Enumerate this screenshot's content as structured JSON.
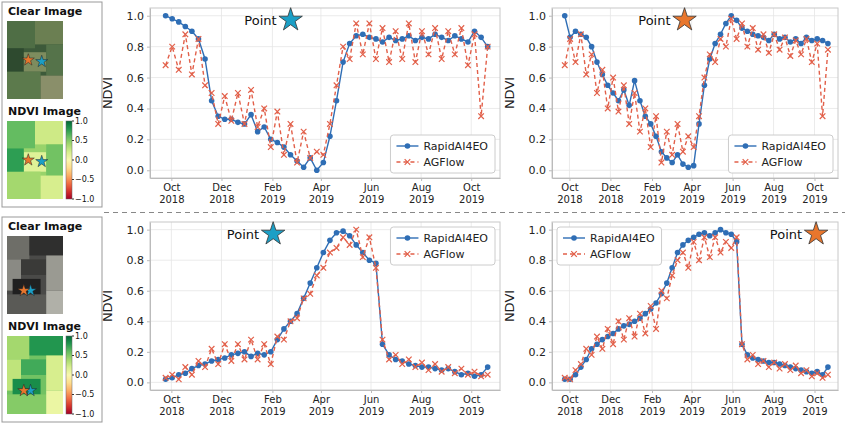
{
  "image_panels": [
    {
      "clear_label": "Clear Image",
      "ndvi_label": "NDVI Image",
      "colorbar": {
        "range": [
          -1,
          1
        ],
        "ticks": [
          {
            "value": 1,
            "label": "1.0"
          },
          {
            "value": 0.5,
            "label": "0.5"
          },
          {
            "value": 0,
            "label": "0.0"
          },
          {
            "value": -0.5,
            "label": "−0.5"
          },
          {
            "value": -1,
            "label": "−1.0"
          }
        ]
      }
    },
    {
      "clear_label": "Clear Image",
      "ndvi_label": "NDVI Image",
      "colorbar": {
        "range": [
          -1,
          1
        ],
        "ticks": [
          {
            "value": 1,
            "label": "1.0"
          },
          {
            "value": 0.5,
            "label": "0.5"
          },
          {
            "value": 0,
            "label": "0.0"
          },
          {
            "value": -0.5,
            "label": "−0.5"
          },
          {
            "value": -1,
            "label": "−1.0"
          }
        ]
      }
    }
  ],
  "chart_data": [
    {
      "type": "line",
      "title": "Point",
      "color": "#1b9fc6",
      "y_label": "NDVI",
      "grid": true,
      "legend": "lower right",
      "xlim": [
        "2018-09-05",
        "2019-11-05"
      ],
      "xticks": [
        {
          "value": "2018-10-01",
          "label": "Oct\n2018"
        },
        {
          "value": "2018-12-01",
          "label": "Dec\n2018"
        },
        {
          "value": "2019-02-01",
          "label": "Feb\n2019"
        },
        {
          "value": "2019-04-01",
          "label": "Apr\n2019"
        },
        {
          "value": "2019-06-01",
          "label": "Jun\n2019"
        },
        {
          "value": "2019-08-01",
          "label": "Aug\n2019"
        },
        {
          "value": "2019-10-01",
          "label": "Oct\n2019"
        }
      ],
      "ylim": [
        -0.05,
        1.05
      ],
      "yticks": [
        {
          "value": 0,
          "label": "0.0"
        },
        {
          "value": 0.2,
          "label": "0.2"
        },
        {
          "value": 0.4,
          "label": "0.4"
        },
        {
          "value": 0.6,
          "label": "0.6"
        },
        {
          "value": 0.8,
          "label": "0.8"
        },
        {
          "value": 1,
          "label": "1.0"
        }
      ],
      "x": [
        "2018-09-24",
        "2018-10-02",
        "2018-10-10",
        "2018-10-18",
        "2018-10-26",
        "2018-11-03",
        "2018-11-11",
        "2018-11-19",
        "2018-11-27",
        "2018-12-05",
        "2018-12-13",
        "2018-12-21",
        "2018-12-29",
        "2019-01-06",
        "2019-01-14",
        "2019-01-22",
        "2019-01-30",
        "2019-02-07",
        "2019-02-15",
        "2019-02-23",
        "2019-03-03",
        "2019-03-11",
        "2019-03-19",
        "2019-03-27",
        "2019-04-04",
        "2019-04-12",
        "2019-04-20",
        "2019-04-28",
        "2019-05-06",
        "2019-05-14",
        "2019-05-22",
        "2019-05-30",
        "2019-06-07",
        "2019-06-15",
        "2019-06-23",
        "2019-07-01",
        "2019-07-09",
        "2019-07-17",
        "2019-07-25",
        "2019-08-02",
        "2019-08-10",
        "2019-08-18",
        "2019-08-26",
        "2019-09-03",
        "2019-09-11",
        "2019-09-19",
        "2019-09-27",
        "2019-10-05",
        "2019-10-13",
        "2019-10-21"
      ],
      "series": [
        {
          "name": "RapidAI4EO",
          "color": "#2f6eb5",
          "marker": "circle",
          "line_style": "solid",
          "values": [
            1.0,
            0.98,
            0.96,
            0.93,
            0.9,
            0.85,
            0.72,
            0.45,
            0.35,
            0.33,
            0.33,
            0.31,
            0.3,
            0.36,
            0.25,
            0.28,
            0.2,
            0.18,
            0.15,
            0.1,
            0.06,
            0.02,
            0.08,
            0.0,
            0.05,
            0.22,
            0.45,
            0.7,
            0.82,
            0.87,
            0.88,
            0.86,
            0.85,
            0.83,
            0.86,
            0.84,
            0.85,
            0.87,
            0.84,
            0.86,
            0.85,
            0.88,
            0.86,
            0.84,
            0.87,
            0.85,
            0.83,
            0.9,
            0.86,
            0.8
          ]
        },
        {
          "name": "AGFlow",
          "color": "#e2604a",
          "marker": "x",
          "line_style": "dashed",
          "values": [
            0.68,
            0.8,
            0.65,
            0.88,
            0.62,
            0.85,
            0.55,
            0.5,
            0.3,
            0.48,
            0.32,
            0.5,
            0.3,
            0.52,
            0.28,
            0.4,
            0.15,
            0.38,
            0.1,
            0.3,
            0.05,
            0.25,
            0.08,
            0.12,
            0.1,
            0.3,
            0.55,
            0.8,
            0.72,
            0.95,
            0.75,
            0.95,
            0.72,
            0.92,
            0.7,
            0.9,
            0.72,
            0.95,
            0.7,
            0.9,
            0.75,
            0.92,
            0.72,
            0.9,
            0.75,
            0.92,
            0.68,
            0.88,
            0.35,
            0.8
          ]
        }
      ]
    },
    {
      "type": "line",
      "title": "Point",
      "color": "#e8762d",
      "y_label": "NDVI",
      "grid": true,
      "legend": "lower right",
      "xlim": [
        "2018-09-05",
        "2019-11-05"
      ],
      "xticks": [
        {
          "value": "2018-10-01",
          "label": "Oct\n2018"
        },
        {
          "value": "2018-12-01",
          "label": "Dec\n2018"
        },
        {
          "value": "2019-02-01",
          "label": "Feb\n2019"
        },
        {
          "value": "2019-04-01",
          "label": "Apr\n2019"
        },
        {
          "value": "2019-06-01",
          "label": "Jun\n2019"
        },
        {
          "value": "2019-08-01",
          "label": "Aug\n2019"
        },
        {
          "value": "2019-10-01",
          "label": "Oct\n2019"
        }
      ],
      "ylim": [
        -0.05,
        1.05
      ],
      "yticks": [
        {
          "value": 0,
          "label": "0.0"
        },
        {
          "value": 0.2,
          "label": "0.2"
        },
        {
          "value": 0.4,
          "label": "0.4"
        },
        {
          "value": 0.6,
          "label": "0.6"
        },
        {
          "value": 0.8,
          "label": "0.8"
        },
        {
          "value": 1,
          "label": "1.0"
        }
      ],
      "x": [
        "2018-09-24",
        "2018-10-02",
        "2018-10-10",
        "2018-10-18",
        "2018-10-26",
        "2018-11-03",
        "2018-11-11",
        "2018-11-19",
        "2018-11-27",
        "2018-12-05",
        "2018-12-13",
        "2018-12-21",
        "2018-12-29",
        "2019-01-06",
        "2019-01-14",
        "2019-01-22",
        "2019-01-30",
        "2019-02-07",
        "2019-02-15",
        "2019-02-23",
        "2019-03-03",
        "2019-03-11",
        "2019-03-19",
        "2019-03-27",
        "2019-04-04",
        "2019-04-12",
        "2019-04-20",
        "2019-04-28",
        "2019-05-06",
        "2019-05-14",
        "2019-05-22",
        "2019-05-30",
        "2019-06-07",
        "2019-06-15",
        "2019-06-23",
        "2019-07-01",
        "2019-07-09",
        "2019-07-17",
        "2019-07-25",
        "2019-08-02",
        "2019-08-10",
        "2019-08-18",
        "2019-08-26",
        "2019-09-03",
        "2019-09-11",
        "2019-09-19",
        "2019-09-27",
        "2019-10-05",
        "2019-10-13",
        "2019-10-21"
      ],
      "series": [
        {
          "name": "RapidAI4EO",
          "color": "#2f6eb5",
          "marker": "circle",
          "line_style": "solid",
          "values": [
            1.0,
            0.86,
            0.9,
            0.88,
            0.86,
            0.8,
            0.7,
            0.62,
            0.55,
            0.5,
            0.45,
            0.52,
            0.42,
            0.58,
            0.45,
            0.35,
            0.3,
            0.22,
            0.12,
            0.08,
            0.05,
            0.1,
            0.04,
            0.02,
            0.03,
            0.3,
            0.55,
            0.72,
            0.82,
            0.88,
            0.95,
            1.0,
            0.97,
            0.92,
            0.9,
            0.88,
            0.87,
            0.86,
            0.84,
            0.88,
            0.85,
            0.86,
            0.83,
            0.85,
            0.82,
            0.86,
            0.84,
            0.85,
            0.84,
            0.82
          ]
        },
        {
          "name": "AGFlow",
          "color": "#e2604a",
          "marker": "x",
          "line_style": "dashed",
          "values": [
            0.68,
            0.85,
            0.7,
            0.88,
            0.62,
            0.75,
            0.5,
            0.65,
            0.4,
            0.6,
            0.38,
            0.55,
            0.3,
            0.5,
            0.25,
            0.4,
            0.15,
            0.35,
            0.05,
            0.25,
            0.1,
            0.3,
            0.12,
            0.22,
            0.15,
            0.35,
            0.6,
            0.75,
            0.7,
            0.85,
            0.8,
            0.98,
            0.85,
            0.95,
            0.8,
            0.92,
            0.78,
            0.88,
            0.76,
            0.88,
            0.78,
            0.86,
            0.74,
            0.84,
            0.75,
            0.85,
            0.7,
            0.82,
            0.35,
            0.78
          ]
        }
      ]
    },
    {
      "type": "line",
      "title": "Point",
      "color": "#1b9fc6",
      "y_label": "NDVI",
      "grid": true,
      "legend": "upper right",
      "xlim": [
        "2018-09-05",
        "2019-11-05"
      ],
      "xticks": [
        {
          "value": "2018-10-01",
          "label": "Oct\n2018"
        },
        {
          "value": "2018-12-01",
          "label": "Dec\n2018"
        },
        {
          "value": "2019-02-01",
          "label": "Feb\n2019"
        },
        {
          "value": "2019-04-01",
          "label": "Apr\n2019"
        },
        {
          "value": "2019-06-01",
          "label": "Jun\n2019"
        },
        {
          "value": "2019-08-01",
          "label": "Aug\n2019"
        },
        {
          "value": "2019-10-01",
          "label": "Oct\n2019"
        }
      ],
      "ylim": [
        -0.05,
        1.05
      ],
      "yticks": [
        {
          "value": 0,
          "label": "0.0"
        },
        {
          "value": 0.2,
          "label": "0.2"
        },
        {
          "value": 0.4,
          "label": "0.4"
        },
        {
          "value": 0.6,
          "label": "0.6"
        },
        {
          "value": 0.8,
          "label": "0.8"
        },
        {
          "value": 1,
          "label": "1.0"
        }
      ],
      "x": [
        "2018-09-24",
        "2018-10-02",
        "2018-10-10",
        "2018-10-18",
        "2018-10-26",
        "2018-11-03",
        "2018-11-11",
        "2018-11-19",
        "2018-11-27",
        "2018-12-05",
        "2018-12-13",
        "2018-12-21",
        "2018-12-29",
        "2019-01-06",
        "2019-01-14",
        "2019-01-22",
        "2019-01-30",
        "2019-02-07",
        "2019-02-15",
        "2019-02-23",
        "2019-03-03",
        "2019-03-11",
        "2019-03-19",
        "2019-03-27",
        "2019-04-04",
        "2019-04-12",
        "2019-04-20",
        "2019-04-28",
        "2019-05-06",
        "2019-05-14",
        "2019-05-22",
        "2019-05-30",
        "2019-06-07",
        "2019-06-15",
        "2019-06-23",
        "2019-07-01",
        "2019-07-09",
        "2019-07-17",
        "2019-07-25",
        "2019-08-02",
        "2019-08-10",
        "2019-08-18",
        "2019-08-26",
        "2019-09-03",
        "2019-09-11",
        "2019-09-19",
        "2019-09-27",
        "2019-10-05",
        "2019-10-13",
        "2019-10-21"
      ],
      "series": [
        {
          "name": "RapidAI4EO",
          "color": "#2f6eb5",
          "marker": "circle",
          "line_style": "solid",
          "values": [
            0.02,
            0.03,
            0.05,
            0.06,
            0.09,
            0.11,
            0.12,
            0.14,
            0.15,
            0.16,
            0.18,
            0.19,
            0.2,
            0.17,
            0.19,
            0.18,
            0.2,
            0.28,
            0.35,
            0.4,
            0.45,
            0.55,
            0.65,
            0.75,
            0.85,
            0.93,
            0.98,
            0.99,
            0.96,
            0.9,
            0.85,
            0.8,
            0.78,
            0.25,
            0.18,
            0.15,
            0.14,
            0.12,
            0.11,
            0.1,
            0.1,
            0.09,
            0.08,
            0.09,
            0.07,
            0.05,
            0.06,
            0.04,
            0.05,
            0.1
          ]
        },
        {
          "name": "AGFlow",
          "color": "#e2604a",
          "marker": "x",
          "line_style": "dashed",
          "values": [
            0.03,
            0.05,
            0.02,
            0.1,
            0.05,
            0.14,
            0.1,
            0.22,
            0.12,
            0.25,
            0.14,
            0.25,
            0.15,
            0.28,
            0.15,
            0.25,
            0.12,
            0.3,
            0.28,
            0.4,
            0.42,
            0.55,
            0.58,
            0.7,
            0.75,
            0.85,
            0.88,
            0.95,
            0.9,
            1.0,
            0.82,
            0.95,
            0.75,
            0.28,
            0.15,
            0.18,
            0.12,
            0.15,
            0.1,
            0.13,
            0.08,
            0.12,
            0.07,
            0.1,
            0.06,
            0.09,
            0.05,
            0.07,
            0.04,
            0.05
          ]
        }
      ]
    },
    {
      "type": "line",
      "title": "Point",
      "color": "#e8762d",
      "y_label": "NDVI",
      "grid": true,
      "legend": "upper left",
      "xlim": [
        "2018-09-05",
        "2019-11-05"
      ],
      "xticks": [
        {
          "value": "2018-10-01",
          "label": "Oct\n2018"
        },
        {
          "value": "2018-12-01",
          "label": "Dec\n2018"
        },
        {
          "value": "2019-02-01",
          "label": "Feb\n2019"
        },
        {
          "value": "2019-04-01",
          "label": "Apr\n2019"
        },
        {
          "value": "2019-06-01",
          "label": "Jun\n2019"
        },
        {
          "value": "2019-08-01",
          "label": "Aug\n2019"
        },
        {
          "value": "2019-10-01",
          "label": "Oct\n2019"
        }
      ],
      "ylim": [
        -0.05,
        1.05
      ],
      "yticks": [
        {
          "value": 0,
          "label": "0.0"
        },
        {
          "value": 0.2,
          "label": "0.2"
        },
        {
          "value": 0.4,
          "label": "0.4"
        },
        {
          "value": 0.6,
          "label": "0.6"
        },
        {
          "value": 0.8,
          "label": "0.8"
        },
        {
          "value": 1,
          "label": "1.0"
        }
      ],
      "x": [
        "2018-09-24",
        "2018-10-02",
        "2018-10-10",
        "2018-10-18",
        "2018-10-26",
        "2018-11-03",
        "2018-11-11",
        "2018-11-19",
        "2018-11-27",
        "2018-12-05",
        "2018-12-13",
        "2018-12-21",
        "2018-12-29",
        "2019-01-06",
        "2019-01-14",
        "2019-01-22",
        "2019-01-30",
        "2019-02-07",
        "2019-02-15",
        "2019-02-23",
        "2019-03-03",
        "2019-03-11",
        "2019-03-19",
        "2019-03-27",
        "2019-04-04",
        "2019-04-12",
        "2019-04-20",
        "2019-04-28",
        "2019-05-06",
        "2019-05-14",
        "2019-05-22",
        "2019-05-30",
        "2019-06-07",
        "2019-06-15",
        "2019-06-23",
        "2019-07-01",
        "2019-07-09",
        "2019-07-17",
        "2019-07-25",
        "2019-08-02",
        "2019-08-10",
        "2019-08-18",
        "2019-08-26",
        "2019-09-03",
        "2019-09-11",
        "2019-09-19",
        "2019-09-27",
        "2019-10-05",
        "2019-10-13",
        "2019-10-21"
      ],
      "series": [
        {
          "name": "RapidAI4EO",
          "color": "#2f6eb5",
          "marker": "circle",
          "line_style": "solid",
          "values": [
            0.02,
            0.02,
            0.05,
            0.1,
            0.15,
            0.22,
            0.25,
            0.28,
            0.3,
            0.32,
            0.35,
            0.37,
            0.38,
            0.4,
            0.42,
            0.45,
            0.48,
            0.52,
            0.58,
            0.65,
            0.75,
            0.85,
            0.9,
            0.93,
            0.95,
            0.97,
            0.98,
            0.96,
            0.98,
            1.0,
            0.98,
            0.97,
            0.92,
            0.25,
            0.18,
            0.16,
            0.15,
            0.14,
            0.13,
            0.13,
            0.12,
            0.11,
            0.1,
            0.09,
            0.08,
            0.07,
            0.06,
            0.07,
            0.05,
            0.1
          ]
        },
        {
          "name": "AGFlow",
          "color": "#e2604a",
          "marker": "x",
          "line_style": "dashed",
          "values": [
            0.03,
            0.02,
            0.08,
            0.12,
            0.22,
            0.18,
            0.3,
            0.22,
            0.35,
            0.25,
            0.4,
            0.28,
            0.42,
            0.3,
            0.45,
            0.32,
            0.5,
            0.35,
            0.6,
            0.55,
            0.7,
            0.8,
            0.85,
            0.75,
            0.92,
            0.8,
            0.95,
            0.82,
            0.95,
            0.85,
            0.92,
            0.88,
            0.95,
            0.25,
            0.15,
            0.18,
            0.12,
            0.14,
            0.1,
            0.13,
            0.09,
            0.12,
            0.08,
            0.11,
            0.06,
            0.08,
            0.04,
            0.06,
            0.03,
            0.05
          ]
        }
      ]
    }
  ]
}
